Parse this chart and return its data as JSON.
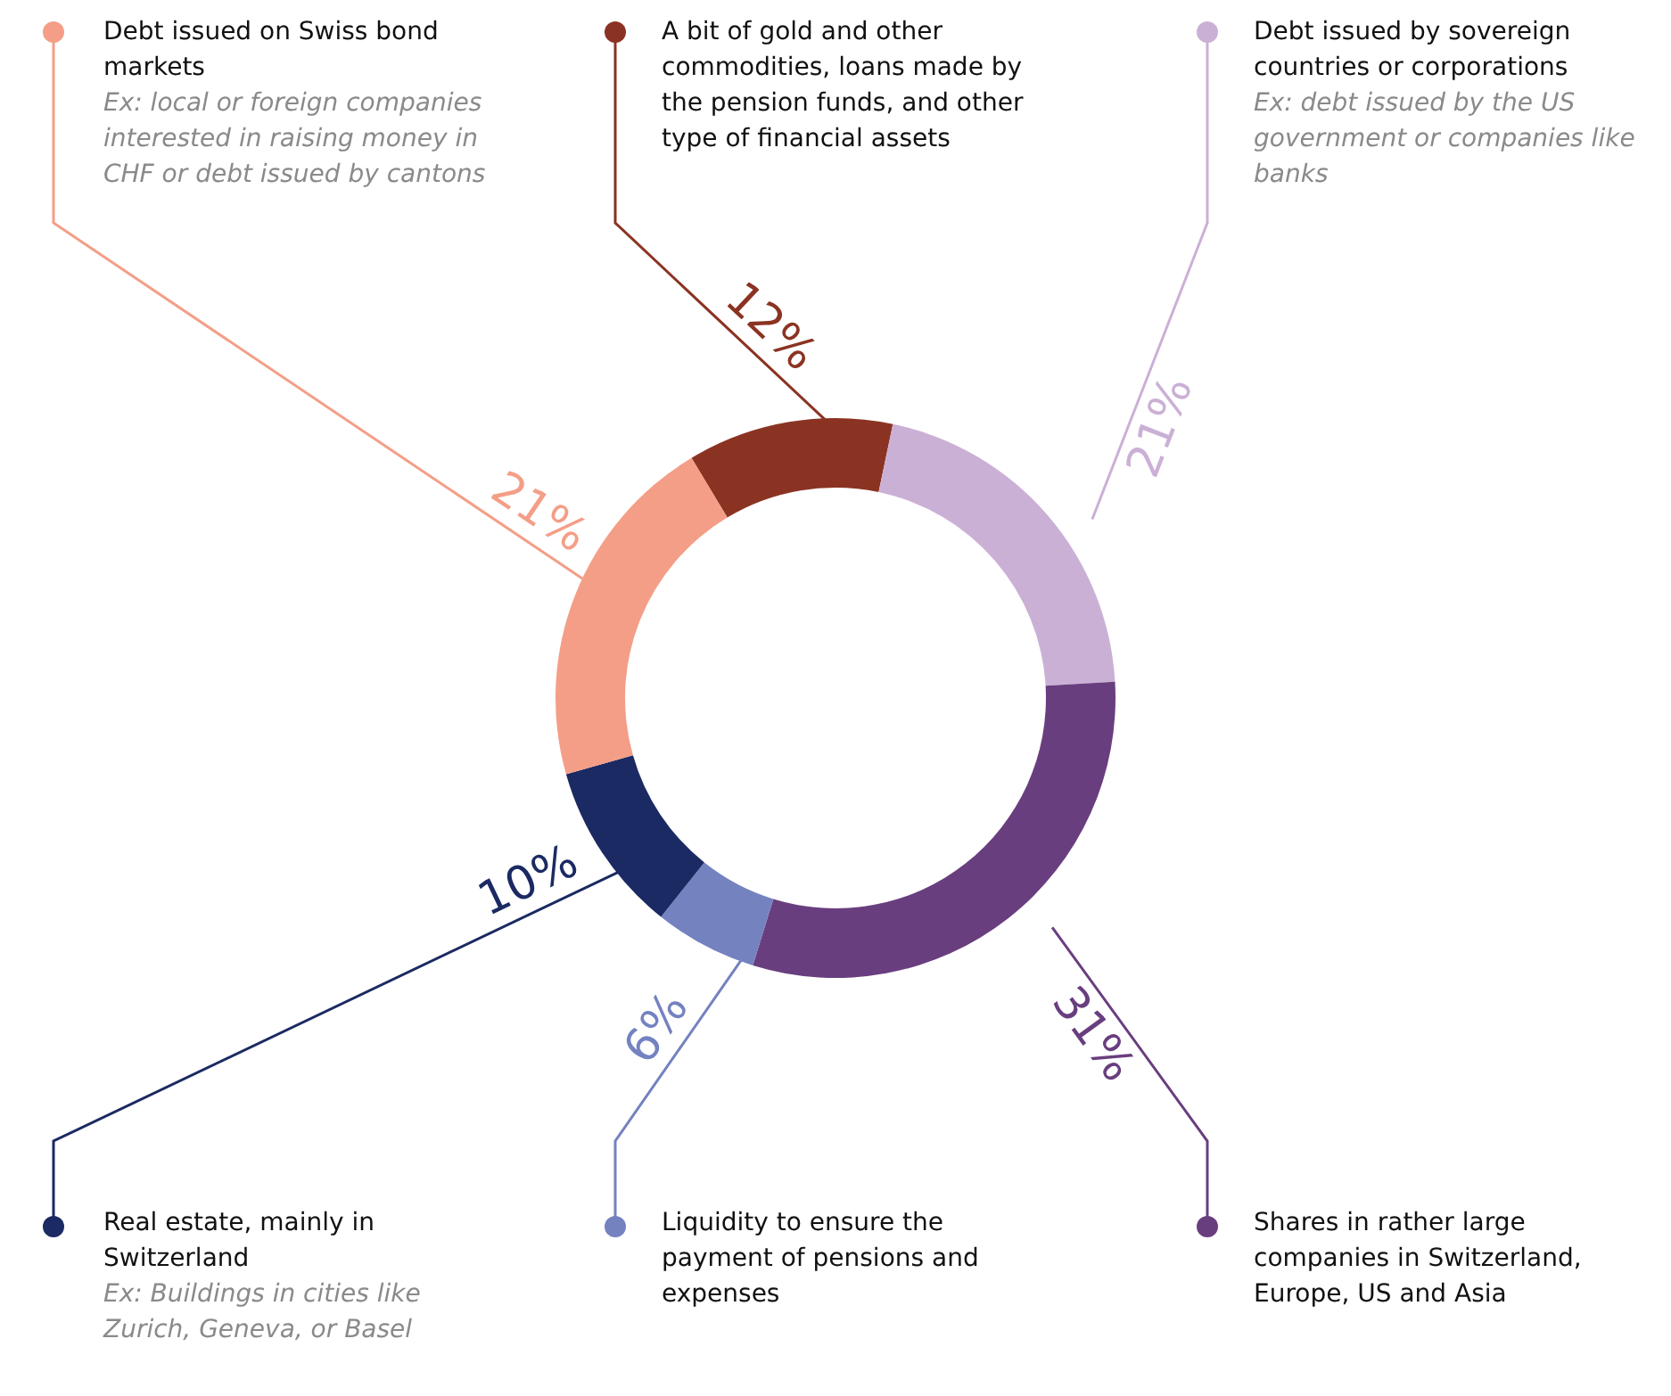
{
  "chart_data": {
    "type": "donut",
    "categories": [
      "A bit of gold and other commodities, loans made by the pension funds, and other type of financial assets",
      "Debt issued by sovereign countries or corporations",
      "Shares in rather large companies in Switzerland, Europe, US and Asia",
      "Liquidity to ensure the payment of pensions and expenses",
      "Real estate, mainly in Switzerland",
      "Debt issued on Swiss bond markets"
    ],
    "values": [
      12,
      21,
      31,
      6,
      10,
      21
    ],
    "legend": "top",
    "value_labels": [
      "12%",
      "21%",
      "31%",
      "6%",
      "10%",
      "21%"
    ],
    "colors": [
      "#8b3322",
      "#cbb0d6",
      "#693e7f",
      "#7482c0",
      "#1b2a63",
      "#f49e87"
    ],
    "annotations": [
      {
        "text": "Ex: debt issued by the US government or companies like banks",
        "x": "Debt issued by sovereign countries or corporations"
      },
      {
        "text": "Ex: Buildings in cities like Zurich, Geneva, or Basel",
        "x": "Real estate, mainly in Switzerland"
      },
      {
        "text": "Ex: local or foreign companies interested in raising money in CHF or debt issued by cantons",
        "x": "Debt issued on Swiss bond markets"
      }
    ]
  }
}
